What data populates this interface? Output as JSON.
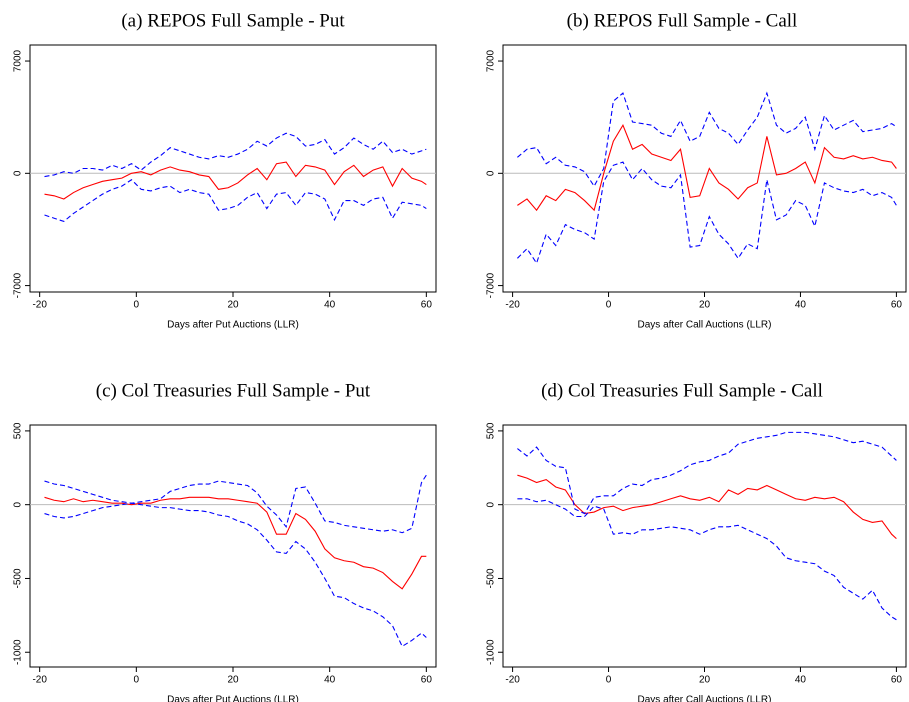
{
  "chart_data": [
    {
      "type": "line",
      "title": "(a) REPOS Full Sample - Put",
      "x_label": "Days after Put Auctions (LLR)",
      "x": [
        -19,
        -17,
        -15,
        -13,
        -11,
        -9,
        -7,
        -5,
        -3,
        -1,
        1,
        3,
        5,
        7,
        9,
        11,
        13,
        15,
        17,
        19,
        21,
        23,
        25,
        27,
        29,
        31,
        33,
        35,
        37,
        39,
        41,
        43,
        45,
        47,
        49,
        51,
        53,
        55,
        57,
        59,
        60
      ],
      "series": [
        {
          "color": "#ff0000",
          "style": "solid",
          "values": [
            -1300,
            -1400,
            -1600,
            -1200,
            -900,
            -700,
            -500,
            -400,
            -300,
            0,
            100,
            -100,
            200,
            400,
            200,
            100,
            -100,
            -200,
            -1000,
            -900,
            -600,
            -100,
            300,
            -400,
            600,
            700,
            -200,
            500,
            400,
            200,
            -700,
            100,
            500,
            -200,
            200,
            400,
            -800,
            300,
            -300,
            -500,
            -700
          ]
        },
        {
          "color": "#0000ff",
          "style": "dashed",
          "values": [
            -200,
            -100,
            100,
            0,
            300,
            300,
            200,
            500,
            300,
            600,
            200,
            700,
            1100,
            1600,
            1400,
            1200,
            1000,
            900,
            1100,
            1000,
            1200,
            1500,
            2000,
            1700,
            2200,
            2500,
            2300,
            1700,
            1800,
            2100,
            1200,
            1600,
            2200,
            1800,
            1500,
            2000,
            1300,
            1500,
            1200,
            1400,
            1500
          ]
        },
        {
          "color": "#0000ff",
          "style": "dashed",
          "values": [
            -2600,
            -2800,
            -3000,
            -2500,
            -2100,
            -1700,
            -1300,
            -1000,
            -800,
            -400,
            -1000,
            -1100,
            -900,
            -800,
            -1200,
            -1000,
            -1200,
            -1300,
            -2300,
            -2200,
            -2000,
            -1500,
            -1200,
            -2200,
            -1300,
            -1200,
            -2000,
            -1200,
            -1300,
            -1600,
            -2900,
            -1700,
            -1700,
            -2000,
            -1600,
            -1500,
            -2800,
            -1800,
            -1900,
            -2000,
            -2200
          ]
        }
      ],
      "xlim": [
        -22,
        62
      ],
      "xticks": [
        -20,
        0,
        20,
        40,
        60
      ],
      "ylim": [
        -7400,
        8000
      ],
      "yticks": [
        -7000,
        0,
        7000
      ],
      "zero_line": true
    },
    {
      "type": "line",
      "title": "(b) REPOS Full Sample - Call",
      "x_label": "Days after Call Auctions (LLR)",
      "x": [
        -19,
        -17,
        -15,
        -13,
        -11,
        -9,
        -7,
        -5,
        -3,
        -1,
        1,
        3,
        5,
        7,
        9,
        11,
        13,
        15,
        17,
        19,
        21,
        23,
        25,
        27,
        29,
        31,
        33,
        35,
        37,
        39,
        41,
        43,
        45,
        47,
        49,
        51,
        53,
        55,
        57,
        59,
        60
      ],
      "series": [
        {
          "color": "#ff0000",
          "style": "solid",
          "values": [
            -2000,
            -1600,
            -2300,
            -1400,
            -1700,
            -1000,
            -1200,
            -1700,
            -2300,
            0,
            2000,
            3000,
            1500,
            1800,
            1200,
            1000,
            800,
            1500,
            -1500,
            -1400,
            300,
            -600,
            -1000,
            -1600,
            -900,
            -600,
            2300,
            -100,
            0,
            300,
            700,
            -600,
            1600,
            1000,
            900,
            1100,
            900,
            1000,
            800,
            700,
            300
          ]
        },
        {
          "color": "#0000ff",
          "style": "dashed",
          "values": [
            1000,
            1500,
            1600,
            600,
            1000,
            500,
            400,
            100,
            -800,
            300,
            4500,
            5000,
            3200,
            3100,
            3000,
            2500,
            2300,
            3300,
            2000,
            2300,
            3800,
            2800,
            2500,
            1800,
            2700,
            3500,
            5000,
            3000,
            2500,
            2800,
            3500,
            1500,
            3600,
            2700,
            3000,
            3300,
            2600,
            2700,
            2800,
            3100,
            2900
          ]
        },
        {
          "color": "#0000ff",
          "style": "dashed",
          "values": [
            -5300,
            -4700,
            -5600,
            -3800,
            -4500,
            -3200,
            -3500,
            -3700,
            -4100,
            -500,
            500,
            700,
            -400,
            300,
            -400,
            -800,
            -900,
            -100,
            -4600,
            -4500,
            -2700,
            -3800,
            -4400,
            -5300,
            -4400,
            -4700,
            -400,
            -2900,
            -2600,
            -1700,
            -2000,
            -3300,
            -600,
            -900,
            -1100,
            -1200,
            -1000,
            -1400,
            -1200,
            -1500,
            -2000
          ]
        }
      ],
      "xlim": [
        -22,
        62
      ],
      "xticks": [
        -20,
        0,
        20,
        40,
        60
      ],
      "ylim": [
        -7400,
        8000
      ],
      "yticks": [
        -7000,
        0,
        7000
      ],
      "zero_line": true
    },
    {
      "type": "line",
      "title": "(c) Col Treasuries Full Sample - Put",
      "x_label": "Days after Put Auctions (LLR)",
      "x": [
        -19,
        -17,
        -15,
        -13,
        -11,
        -9,
        -7,
        -5,
        -3,
        -1,
        1,
        3,
        5,
        7,
        9,
        11,
        13,
        15,
        17,
        19,
        21,
        23,
        25,
        27,
        29,
        31,
        33,
        35,
        37,
        39,
        41,
        43,
        45,
        47,
        49,
        51,
        53,
        55,
        57,
        59,
        60
      ],
      "series": [
        {
          "color": "#ff0000",
          "style": "solid",
          "values": [
            50,
            30,
            20,
            40,
            20,
            30,
            20,
            10,
            10,
            0,
            10,
            10,
            30,
            40,
            40,
            50,
            50,
            50,
            40,
            40,
            30,
            20,
            10,
            -50,
            -200,
            -200,
            -60,
            -100,
            -180,
            -300,
            -360,
            -380,
            -390,
            -420,
            -430,
            -460,
            -520,
            -570,
            -470,
            -350,
            -350
          ]
        },
        {
          "color": "#0000ff",
          "style": "dashed",
          "values": [
            160,
            140,
            130,
            110,
            90,
            70,
            50,
            30,
            20,
            10,
            20,
            30,
            40,
            90,
            110,
            130,
            140,
            140,
            160,
            150,
            140,
            130,
            80,
            -10,
            -70,
            -150,
            110,
            120,
            10,
            -110,
            -120,
            -140,
            -150,
            -160,
            -170,
            -180,
            -170,
            -190,
            -160,
            150,
            200
          ]
        },
        {
          "color": "#0000ff",
          "style": "dashed",
          "values": [
            -60,
            -80,
            -90,
            -80,
            -60,
            -40,
            -20,
            -10,
            0,
            10,
            0,
            -10,
            -20,
            -20,
            -30,
            -40,
            -40,
            -50,
            -70,
            -80,
            -110,
            -130,
            -170,
            -240,
            -320,
            -330,
            -250,
            -300,
            -390,
            -500,
            -620,
            -630,
            -670,
            -700,
            -720,
            -760,
            -820,
            -960,
            -920,
            -870,
            -900
          ]
        }
      ],
      "xlim": [
        -22,
        62
      ],
      "xticks": [
        -20,
        0,
        20,
        40,
        60
      ],
      "ylim": [
        -1100,
        540
      ],
      "yticks": [
        -1000,
        -500,
        0,
        500
      ],
      "zero_line": true
    },
    {
      "type": "line",
      "title": "(d) Col Treasuries Full Sample - Call",
      "x_label": "Days after Call Auctions (LLR)",
      "x": [
        -19,
        -17,
        -15,
        -13,
        -11,
        -9,
        -7,
        -5,
        -3,
        -1,
        1,
        3,
        5,
        7,
        9,
        11,
        13,
        15,
        17,
        19,
        21,
        23,
        25,
        27,
        29,
        31,
        33,
        35,
        37,
        39,
        41,
        43,
        45,
        47,
        49,
        51,
        53,
        55,
        57,
        59,
        60
      ],
      "series": [
        {
          "color": "#ff0000",
          "style": "solid",
          "values": [
            200,
            180,
            150,
            170,
            120,
            100,
            0,
            -60,
            -50,
            -20,
            -10,
            -40,
            -20,
            -10,
            0,
            20,
            40,
            60,
            40,
            30,
            50,
            20,
            100,
            70,
            110,
            100,
            130,
            100,
            70,
            40,
            30,
            50,
            40,
            50,
            20,
            -50,
            -100,
            -120,
            -110,
            -200,
            -230
          ]
        },
        {
          "color": "#0000ff",
          "style": "dashed",
          "values": [
            380,
            330,
            390,
            300,
            260,
            250,
            -30,
            -60,
            50,
            60,
            60,
            110,
            140,
            130,
            170,
            180,
            200,
            230,
            270,
            290,
            300,
            330,
            350,
            410,
            430,
            450,
            460,
            470,
            490,
            490,
            490,
            480,
            470,
            460,
            440,
            420,
            430,
            410,
            390,
            330,
            300
          ]
        },
        {
          "color": "#0000ff",
          "style": "dashed",
          "values": [
            40,
            40,
            20,
            30,
            0,
            -30,
            -80,
            -80,
            -10,
            -30,
            -200,
            -190,
            -200,
            -170,
            -170,
            -160,
            -150,
            -160,
            -170,
            -200,
            -170,
            -150,
            -150,
            -140,
            -170,
            -200,
            -230,
            -280,
            -360,
            -380,
            -390,
            -400,
            -450,
            -480,
            -560,
            -600,
            -640,
            -580,
            -700,
            -760,
            -780
          ]
        }
      ],
      "xlim": [
        -22,
        62
      ],
      "xticks": [
        -20,
        0,
        20,
        40,
        60
      ],
      "ylim": [
        -1100,
        540
      ],
      "yticks": [
        -1000,
        -500,
        0,
        500
      ],
      "zero_line": true
    }
  ]
}
